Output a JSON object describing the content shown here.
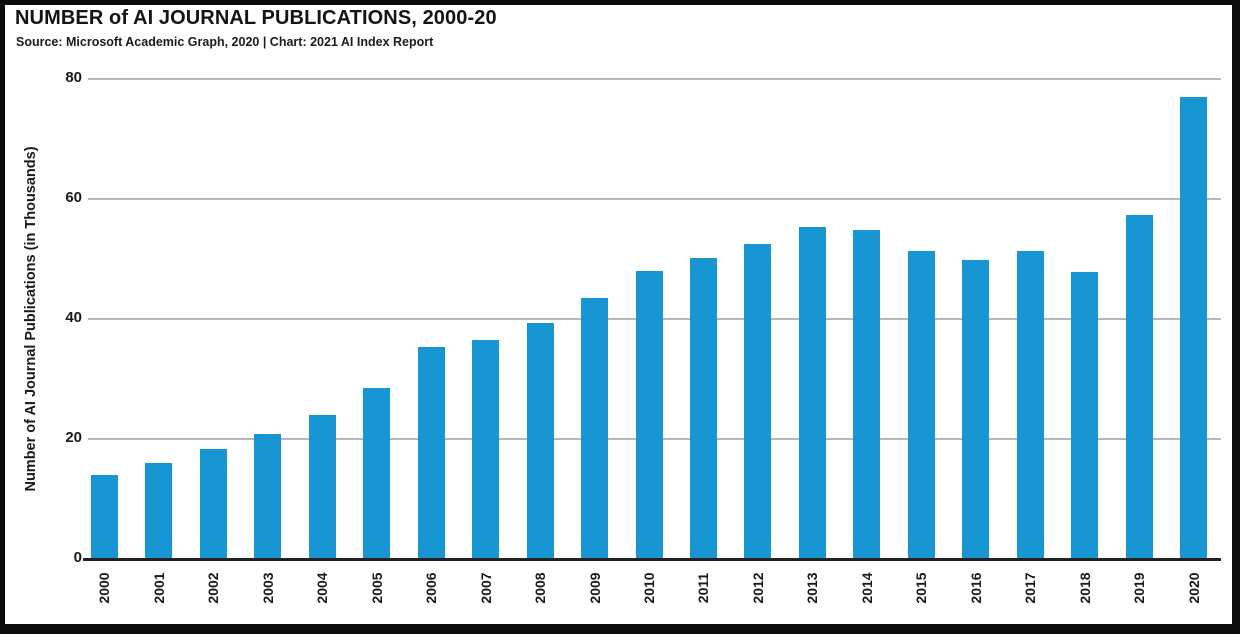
{
  "header": {
    "title": "NUMBER of AI JOURNAL PUBLICATIONS, 2000-20",
    "source_line": "Source: Microsoft Academic Graph, 2020 | Chart: 2021 AI Index Report"
  },
  "chart_data": {
    "type": "bar",
    "title": "NUMBER of AI JOURNAL PUBLICATIONS, 2000-20",
    "subtitle": "Source: Microsoft Academic Graph, 2020 | Chart: 2021 AI Index Report",
    "categories": [
      "2000",
      "2001",
      "2002",
      "2003",
      "2004",
      "2005",
      "2006",
      "2007",
      "2008",
      "2009",
      "2010",
      "2011",
      "2012",
      "2013",
      "2014",
      "2015",
      "2016",
      "2017",
      "2018",
      "2019",
      "2020"
    ],
    "values": [
      13.9,
      15.9,
      18.1,
      20.6,
      23.9,
      28.4,
      35.1,
      36.3,
      39.2,
      43.3,
      47.8,
      50.0,
      52.3,
      55.2,
      54.6,
      51.1,
      49.6,
      51.1,
      47.7,
      57.2,
      76.8
    ],
    "xlabel": "",
    "ylabel": "Number of AI Journal Publications (in Thousands)",
    "ylim": [
      0,
      80
    ],
    "yticks": [
      0,
      20,
      40,
      60,
      80
    ],
    "grid": "horizontal",
    "legend": "none"
  },
  "colors": {
    "bar": "#1796d3",
    "gridline": "#b7b7b7",
    "axis_line": "#222222",
    "frame": "#0b0b0b",
    "background": "#ffffff",
    "text": "#1a1a1a"
  }
}
